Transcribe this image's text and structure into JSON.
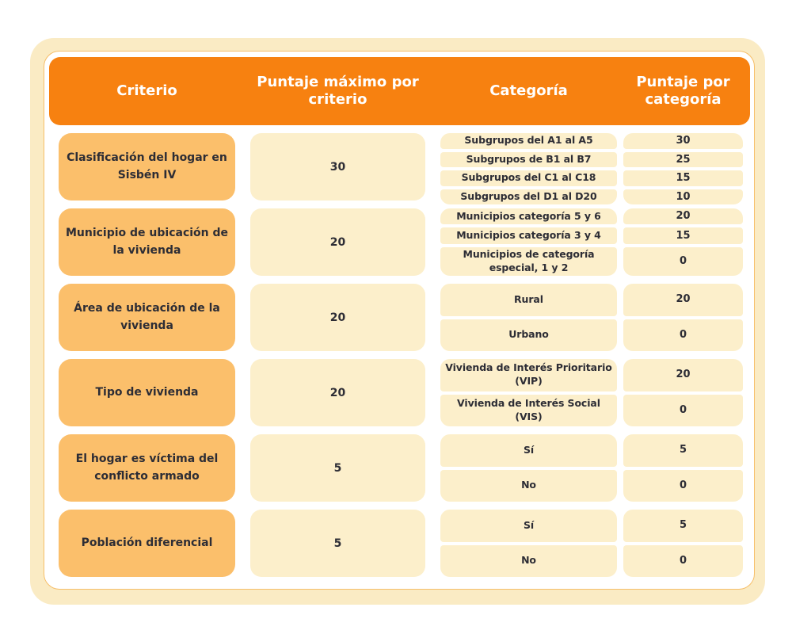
{
  "header": {
    "columns": [
      "Criterio",
      "Puntaje máximo por criterio",
      "Categoría",
      "Puntaje por categoría"
    ]
  },
  "rows": [
    {
      "criterion": "Clasificación del hogar en Sisbén IV",
      "max_score": "30",
      "categories": [
        {
          "label": "Subgrupos del A1 al A5",
          "score": "30"
        },
        {
          "label": "Subgrupos de B1 al B7",
          "score": "25"
        },
        {
          "label": "Subgrupos del C1 al C18",
          "score": "15"
        },
        {
          "label": "Subgrupos del D1 al D20",
          "score": "10"
        }
      ]
    },
    {
      "criterion": "Municipio de ubicación de la vivienda",
      "max_score": "20",
      "categories": [
        {
          "label": "Municipios categoría 5 y 6",
          "score": "20"
        },
        {
          "label": "Municipios categoría 3 y 4",
          "score": "15"
        },
        {
          "label": "Municipios de categoría especial, 1 y 2",
          "score": "0"
        }
      ]
    },
    {
      "criterion": "Área de ubicación de la vivienda",
      "max_score": "20",
      "categories": [
        {
          "label": "Rural",
          "score": "20"
        },
        {
          "label": "Urbano",
          "score": "0"
        }
      ]
    },
    {
      "criterion": "Tipo de vivienda",
      "max_score": "20",
      "categories": [
        {
          "label": "Vivienda de Interés Prioritario (VIP)",
          "score": "20"
        },
        {
          "label": "Vivienda de Interés Social (VIS)",
          "score": "0"
        }
      ]
    },
    {
      "criterion": "El hogar es víctima del conflicto armado",
      "max_score": "5",
      "categories": [
        {
          "label": "Sí",
          "score": "5"
        },
        {
          "label": "No",
          "score": "0"
        }
      ]
    },
    {
      "criterion": "Población diferencial",
      "max_score": "5",
      "categories": [
        {
          "label": "Sí",
          "score": "5"
        },
        {
          "label": "No",
          "score": "0"
        }
      ]
    }
  ],
  "colors": {
    "header_bg": "#F78110",
    "criterion_bg": "#FBBF6B",
    "cell_bg": "#FCEFCB",
    "card_bg": "#FAEBC4",
    "panel_border": "#F6BE68",
    "text_dark": "#2D2D35",
    "header_text": "#FFFFFF"
  }
}
